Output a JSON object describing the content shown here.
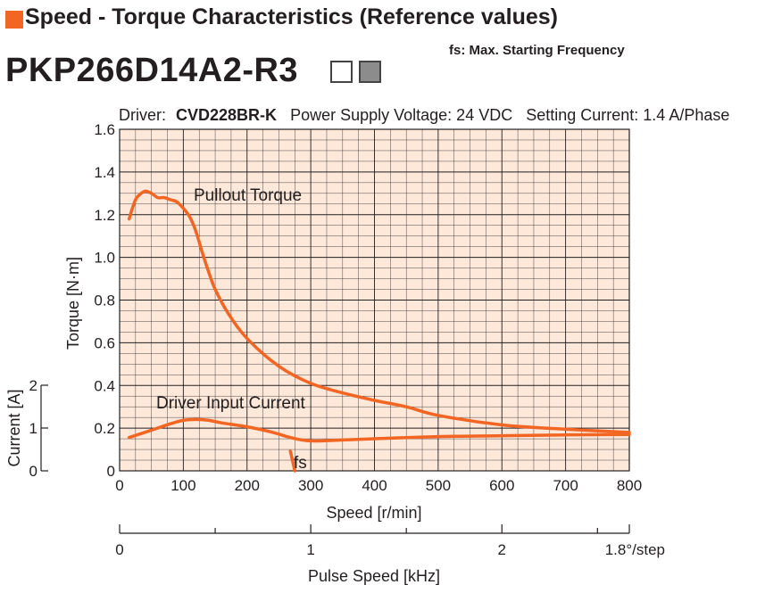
{
  "header": {
    "title": "Speed - Torque Characteristics (Reference values)",
    "fs_note": "fs: Max. Starting Frequency",
    "model": "PKP266D14A2-R3"
  },
  "colors": {
    "accent": "#f26522",
    "plot_background": "#fde8da",
    "curve": "#f26522",
    "grid": "#231f20"
  },
  "chart_data": {
    "type": "line",
    "driver_info": {
      "driver_label": "Driver:",
      "driver_model": "CVD228BR-K",
      "supply": "Power Supply Voltage: 24 VDC",
      "current": "Setting Current: 1.4 A/Phase"
    },
    "xlabel": "Speed [r/min]",
    "xlim": [
      0,
      800
    ],
    "xticks": [
      "0",
      "100",
      "200",
      "300",
      "400",
      "500",
      "600",
      "700",
      "800"
    ],
    "ylabel": "Torque [N·m]",
    "ylim": [
      0,
      1.6
    ],
    "yticks": [
      "0",
      "0.2",
      "0.4",
      "0.6",
      "0.8",
      "1.0",
      "1.2",
      "1.4",
      "1.6"
    ],
    "y2label": "Current [A]",
    "y2lim": [
      0,
      2
    ],
    "y2ticks": [
      "0",
      "1",
      "2"
    ],
    "x2label": "Pulse Speed [kHz]",
    "x2ticks": [
      "0",
      "1",
      "2"
    ],
    "x2_note": "1.8°/step",
    "grid": true,
    "series": [
      {
        "name": "Pullout Torque",
        "axis": "torque",
        "x": [
          15,
          20,
          25,
          30,
          40,
          50,
          60,
          70,
          80,
          90,
          100,
          110,
          120,
          130,
          140,
          150,
          170,
          200,
          250,
          300,
          350,
          400,
          450,
          500,
          600,
          700,
          800
        ],
        "y": [
          1.18,
          1.23,
          1.27,
          1.29,
          1.31,
          1.3,
          1.28,
          1.28,
          1.27,
          1.26,
          1.23,
          1.19,
          1.12,
          1.02,
          0.93,
          0.85,
          0.74,
          0.62,
          0.49,
          0.41,
          0.365,
          0.33,
          0.3,
          0.26,
          0.215,
          0.195,
          0.18
        ]
      },
      {
        "name": "Driver Input Current",
        "axis": "current",
        "x": [
          15,
          50,
          80,
          100,
          120,
          140,
          160,
          200,
          240,
          270,
          300,
          350,
          400,
          500,
          600,
          700,
          800
        ],
        "y": [
          0.78,
          0.95,
          1.1,
          1.18,
          1.2,
          1.18,
          1.12,
          1.03,
          0.9,
          0.77,
          0.7,
          0.72,
          0.75,
          0.8,
          0.82,
          0.84,
          0.85
        ]
      }
    ],
    "annotations": [
      {
        "text": "Pullout Torque"
      },
      {
        "text": "Driver Input Current"
      },
      {
        "text": "fs",
        "x": 268
      }
    ]
  }
}
